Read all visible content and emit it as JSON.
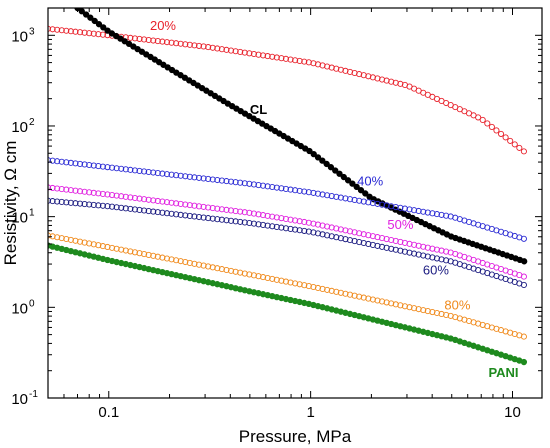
{
  "chart_data": {
    "type": "scatter",
    "xlabel": "Pressure, MPa",
    "ylabel": "Resistivity, Ω cm",
    "xscale": "log",
    "yscale": "log",
    "xlim": [
      0.05,
      14
    ],
    "ylim": [
      0.1,
      2000
    ],
    "x_ticks": [
      {
        "value": 0.1,
        "label": "0.1"
      },
      {
        "value": 1,
        "label": "1"
      },
      {
        "value": 10,
        "label": "10"
      }
    ],
    "y_ticks": [
      {
        "value": 0.1,
        "base": "10",
        "exp": "-1"
      },
      {
        "value": 1,
        "base": "10",
        "exp": "0"
      },
      {
        "value": 10,
        "base": "10",
        "exp": "1"
      },
      {
        "value": 100,
        "base": "10",
        "exp": "2"
      },
      {
        "value": 1000,
        "base": "10",
        "exp": "3"
      }
    ],
    "grid": false,
    "series": [
      {
        "name": "20%",
        "color": "#e8222c",
        "marker": "open-circle",
        "points": [
          [
            0.05,
            1180
          ],
          [
            0.1,
            1000
          ],
          [
            0.3,
            750
          ],
          [
            1,
            500
          ],
          [
            3,
            280
          ],
          [
            7,
            120
          ],
          [
            12,
            48
          ]
        ]
      },
      {
        "name": "CL",
        "color": "#000000",
        "marker": "filled-circle",
        "points": [
          [
            0.07,
            2000
          ],
          [
            0.1,
            1100
          ],
          [
            0.2,
            430
          ],
          [
            0.4,
            170
          ],
          [
            1,
            52
          ],
          [
            2,
            16
          ],
          [
            5,
            6
          ],
          [
            12,
            3.1
          ]
        ]
      },
      {
        "name": "40%",
        "color": "#2b2bd4",
        "marker": "open-circle",
        "points": [
          [
            0.05,
            42
          ],
          [
            0.1,
            35
          ],
          [
            0.5,
            23
          ],
          [
            1,
            18.5
          ],
          [
            5,
            10
          ],
          [
            12,
            5.5
          ]
        ]
      },
      {
        "name": "50%",
        "color": "#e020e0",
        "marker": "open-circle",
        "points": [
          [
            0.05,
            21
          ],
          [
            0.1,
            17.5
          ],
          [
            0.5,
            11
          ],
          [
            1,
            8.5
          ],
          [
            5,
            4
          ],
          [
            12,
            2.1
          ]
        ]
      },
      {
        "name": "60%",
        "color": "#1a1a80",
        "marker": "open-circle",
        "points": [
          [
            0.05,
            15
          ],
          [
            0.1,
            13
          ],
          [
            0.5,
            8.5
          ],
          [
            1,
            6.8
          ],
          [
            5,
            3.2
          ],
          [
            12,
            1.7
          ]
        ]
      },
      {
        "name": "80%",
        "color": "#f08a1c",
        "marker": "open-circle",
        "points": [
          [
            0.05,
            6.2
          ],
          [
            0.1,
            4.6
          ],
          [
            0.5,
            2.3
          ],
          [
            1,
            1.7
          ],
          [
            5,
            0.8
          ],
          [
            12,
            0.46
          ]
        ]
      },
      {
        "name": "PANI",
        "color": "#1e8a1e",
        "marker": "filled-circle",
        "points": [
          [
            0.05,
            4.8
          ],
          [
            0.1,
            3.3
          ],
          [
            0.5,
            1.5
          ],
          [
            1,
            1.08
          ],
          [
            5,
            0.45
          ],
          [
            12,
            0.24
          ]
        ]
      }
    ],
    "labels": [
      {
        "text": "20%",
        "series": "20%",
        "x": 0.16,
        "y": 1150,
        "color": "#e8222c"
      },
      {
        "text": "CL",
        "series": "CL",
        "x": 0.5,
        "y": 135,
        "color": "#000000"
      },
      {
        "text": "40%",
        "series": "40%",
        "x": 1.7,
        "y": 22,
        "color": "#2b2bd4"
      },
      {
        "text": "50%",
        "series": "50%",
        "x": 2.4,
        "y": 7.3,
        "color": "#e020e0"
      },
      {
        "text": "60%",
        "series": "60%",
        "x": 3.6,
        "y": 2.3,
        "color": "#1a1a80"
      },
      {
        "text": "80%",
        "series": "80%",
        "x": 4.6,
        "y": 0.95,
        "color": "#f08a1c"
      },
      {
        "text": "PANI",
        "series": "PANI",
        "x": 7.6,
        "y": 0.17,
        "color": "#1e8a1e"
      }
    ]
  }
}
